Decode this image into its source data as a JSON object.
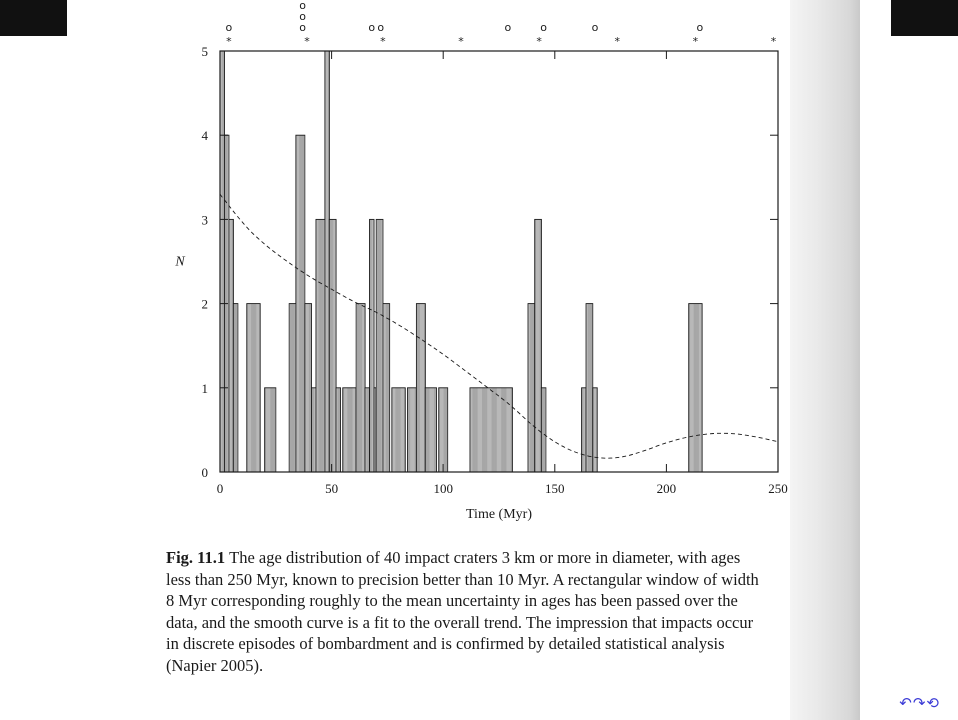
{
  "chart_data": {
    "type": "bar",
    "xlabel": "Time (Myr)",
    "ylabel": "N",
    "xlim": [
      0,
      250
    ],
    "ylim": [
      0,
      5
    ],
    "xticks": [
      0,
      50,
      100,
      150,
      200,
      250
    ],
    "yticks": [
      0,
      1,
      2,
      3,
      4,
      5
    ],
    "bin_width_myr": 1,
    "bins": [
      {
        "from": 0,
        "to": 2,
        "n": 5
      },
      {
        "from": 2,
        "to": 4,
        "n": 4
      },
      {
        "from": 4,
        "to": 6,
        "n": 3
      },
      {
        "from": 6,
        "to": 8,
        "n": 2
      },
      {
        "from": 12,
        "to": 18,
        "n": 2
      },
      {
        "from": 20,
        "to": 25,
        "n": 1
      },
      {
        "from": 31,
        "to": 34,
        "n": 2
      },
      {
        "from": 34,
        "to": 38,
        "n": 4
      },
      {
        "from": 38,
        "to": 41,
        "n": 2
      },
      {
        "from": 41,
        "to": 43,
        "n": 1
      },
      {
        "from": 43,
        "to": 47,
        "n": 3
      },
      {
        "from": 47,
        "to": 49,
        "n": 5
      },
      {
        "from": 49,
        "to": 52,
        "n": 3
      },
      {
        "from": 52,
        "to": 54,
        "n": 1
      },
      {
        "from": 55,
        "to": 61,
        "n": 1
      },
      {
        "from": 61,
        "to": 65,
        "n": 2
      },
      {
        "from": 65,
        "to": 67,
        "n": 1
      },
      {
        "from": 67,
        "to": 69,
        "n": 3
      },
      {
        "from": 69,
        "to": 70,
        "n": 1
      },
      {
        "from": 70,
        "to": 73,
        "n": 3
      },
      {
        "from": 73,
        "to": 76,
        "n": 2
      },
      {
        "from": 77,
        "to": 83,
        "n": 1
      },
      {
        "from": 84,
        "to": 88,
        "n": 1
      },
      {
        "from": 88,
        "to": 92,
        "n": 2
      },
      {
        "from": 92,
        "to": 97,
        "n": 1
      },
      {
        "from": 98,
        "to": 102,
        "n": 1
      },
      {
        "from": 112,
        "to": 131,
        "n": 1
      },
      {
        "from": 138,
        "to": 141,
        "n": 2
      },
      {
        "from": 141,
        "to": 144,
        "n": 3
      },
      {
        "from": 144,
        "to": 146,
        "n": 1
      },
      {
        "from": 162,
        "to": 164,
        "n": 1
      },
      {
        "from": 164,
        "to": 167,
        "n": 2
      },
      {
        "from": 167,
        "to": 169,
        "n": 1
      },
      {
        "from": 210,
        "to": 216,
        "n": 2
      }
    ],
    "trend_curve": {
      "style": "dashed",
      "points": [
        [
          0,
          3.3
        ],
        [
          10,
          2.95
        ],
        [
          20,
          2.7
        ],
        [
          30,
          2.5
        ],
        [
          40,
          2.32
        ],
        [
          50,
          2.17
        ],
        [
          60,
          2.02
        ],
        [
          70,
          1.9
        ],
        [
          80,
          1.75
        ],
        [
          90,
          1.58
        ],
        [
          100,
          1.4
        ],
        [
          110,
          1.2
        ],
        [
          120,
          1.0
        ],
        [
          130,
          0.8
        ],
        [
          140,
          0.55
        ],
        [
          150,
          0.35
        ],
        [
          160,
          0.22
        ],
        [
          170,
          0.16
        ],
        [
          180,
          0.17
        ],
        [
          190,
          0.25
        ],
        [
          200,
          0.35
        ],
        [
          210,
          0.42
        ],
        [
          220,
          0.46
        ],
        [
          230,
          0.46
        ],
        [
          240,
          0.42
        ],
        [
          250,
          0.36
        ]
      ]
    },
    "markers_circle": [
      {
        "x": 4,
        "row": 0
      },
      {
        "x": 37,
        "row": 0
      },
      {
        "x": 37,
        "row": 1
      },
      {
        "x": 37,
        "row": 2
      },
      {
        "x": 68,
        "row": 0
      },
      {
        "x": 72,
        "row": 0
      },
      {
        "x": 129,
        "row": 0
      },
      {
        "x": 145,
        "row": 0
      },
      {
        "x": 168,
        "row": 0
      },
      {
        "x": 215,
        "row": 0
      }
    ],
    "markers_star": [
      4,
      39,
      73,
      108,
      143,
      178,
      213,
      248
    ],
    "circle_glyph": "o",
    "star_glyph": "*"
  },
  "caption": {
    "label": "Fig. 11.1",
    "text": "The age distribution of 40 impact craters 3 km or more in diameter, with ages\nless than 250 Myr, known to precision better than 10 Myr. A rectangular window of width\n8 Myr corresponding roughly to the mean uncertainty in ages has been passed over the\ndata, and the smooth curve is a fit to the overall trend. The impression that impacts occur\nin discrete episodes of bombardment and is confirmed by detailed statistical analysis\n(Napier 2005)."
  },
  "colors": {
    "ink": "#1a1a1a",
    "bar_fill": "#f3f3f3",
    "nav": "#3b3bd6"
  }
}
